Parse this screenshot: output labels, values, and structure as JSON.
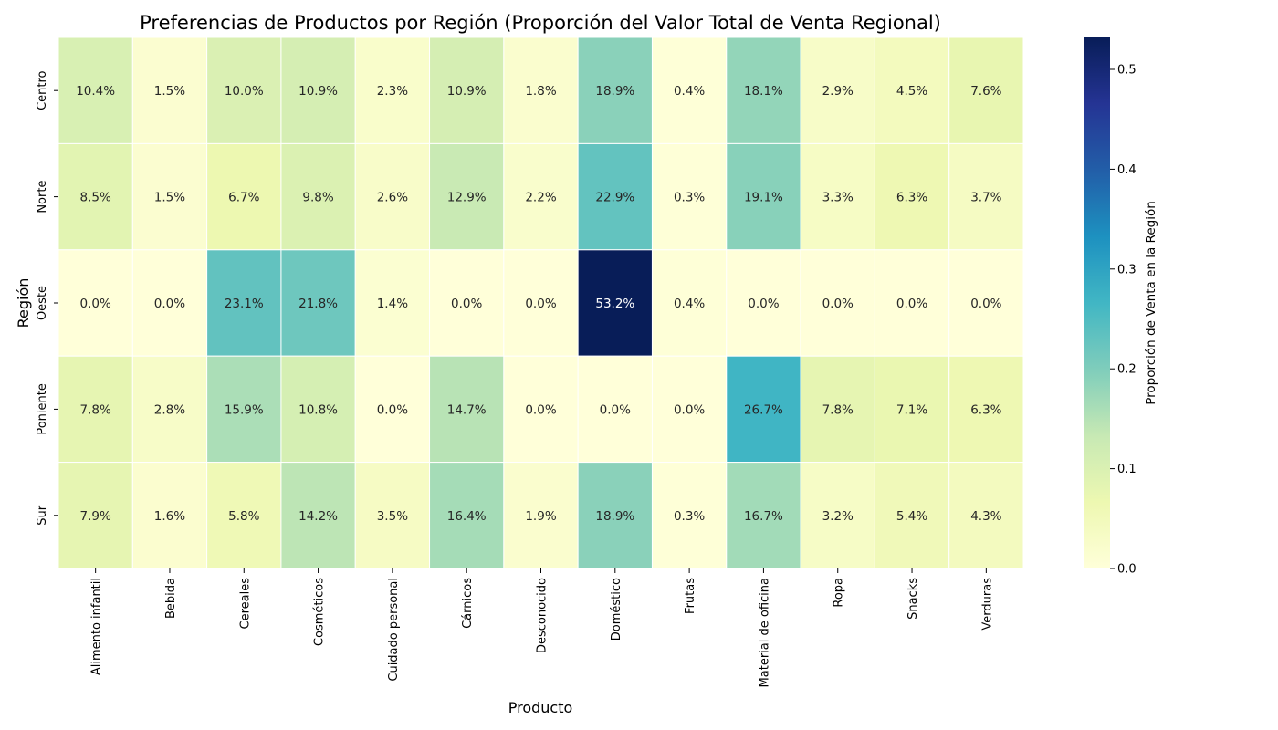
{
  "chart_data": {
    "type": "heatmap",
    "title": "Preferencias de Productos por Región (Proporción del Valor Total de Venta Regional)",
    "xlabel": "Producto",
    "ylabel": "Región",
    "colorbar_label": "Proporción de Venta en la Región",
    "colormap": "YlGnBu",
    "vmin": 0.0,
    "vmax": 0.532,
    "colorbar_ticks": [
      0.0,
      0.1,
      0.2,
      0.3,
      0.4,
      0.5
    ],
    "colorbar_tick_labels": [
      "0.0",
      "0.1",
      "0.2",
      "0.3",
      "0.4",
      "0.5"
    ],
    "x_categories": [
      "Alimento infantil",
      "Bebida",
      "Cereales",
      "Cosméticos",
      "Cuidado personal",
      "Cárnicos",
      "Desconocido",
      "Doméstico",
      "Frutas",
      "Material de oficina",
      "Ropa",
      "Snacks",
      "Verduras"
    ],
    "y_categories": [
      "Centro",
      "Norte",
      "Oeste",
      "Poniente",
      "Sur"
    ],
    "values": [
      [
        0.104,
        0.015,
        0.1,
        0.109,
        0.023,
        0.109,
        0.018,
        0.189,
        0.004,
        0.181,
        0.029,
        0.045,
        0.076
      ],
      [
        0.085,
        0.015,
        0.067,
        0.098,
        0.026,
        0.129,
        0.022,
        0.229,
        0.003,
        0.191,
        0.033,
        0.063,
        0.037
      ],
      [
        0.0,
        0.0,
        0.231,
        0.218,
        0.014,
        0.0,
        0.0,
        0.532,
        0.004,
        0.0,
        0.0,
        0.0,
        0.0
      ],
      [
        0.078,
        0.028,
        0.159,
        0.108,
        0.0,
        0.147,
        0.0,
        0.0,
        0.0,
        0.267,
        0.078,
        0.071,
        0.063
      ],
      [
        0.079,
        0.016,
        0.058,
        0.142,
        0.035,
        0.164,
        0.019,
        0.189,
        0.003,
        0.167,
        0.032,
        0.054,
        0.043
      ]
    ],
    "cell_labels": [
      [
        "10.4%",
        "1.5%",
        "10.0%",
        "10.9%",
        "2.3%",
        "10.9%",
        "1.8%",
        "18.9%",
        "0.4%",
        "18.1%",
        "2.9%",
        "4.5%",
        "7.6%"
      ],
      [
        "8.5%",
        "1.5%",
        "6.7%",
        "9.8%",
        "2.6%",
        "12.9%",
        "2.2%",
        "22.9%",
        "0.3%",
        "19.1%",
        "3.3%",
        "6.3%",
        "3.7%"
      ],
      [
        "0.0%",
        "0.0%",
        "23.1%",
        "21.8%",
        "1.4%",
        "0.0%",
        "0.0%",
        "53.2%",
        "0.4%",
        "0.0%",
        "0.0%",
        "0.0%",
        "0.0%"
      ],
      [
        "7.8%",
        "2.8%",
        "15.9%",
        "10.8%",
        "0.0%",
        "14.7%",
        "0.0%",
        "0.0%",
        "0.0%",
        "26.7%",
        "7.8%",
        "7.1%",
        "6.3%"
      ],
      [
        "7.9%",
        "1.6%",
        "5.8%",
        "14.2%",
        "3.5%",
        "16.4%",
        "1.9%",
        "18.9%",
        "0.3%",
        "16.7%",
        "3.2%",
        "5.4%",
        "4.3%"
      ]
    ]
  }
}
